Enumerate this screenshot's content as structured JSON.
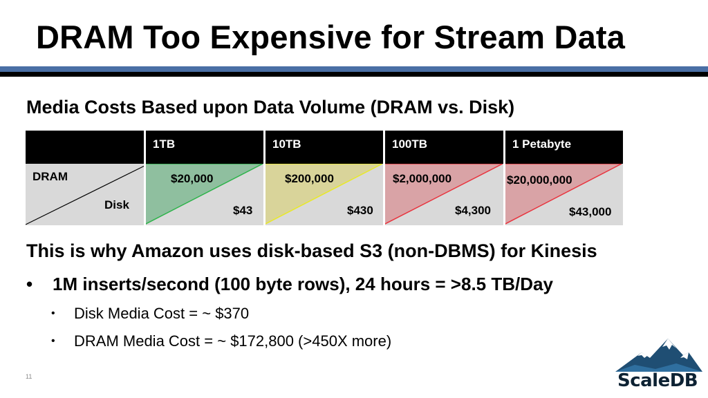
{
  "slide": {
    "title": "DRAM Too Expensive for Stream Data",
    "subtitle": "Media Costs Based upon Data Volume (DRAM vs. Disk)",
    "page_number": "11"
  },
  "table": {
    "corner": {
      "top_label": "DRAM",
      "bottom_label": "Disk"
    },
    "columns": [
      {
        "header": "1TB",
        "dram": "$20,000",
        "disk": "$43",
        "color": "#8fbf9f",
        "line": "#2db34a"
      },
      {
        "header": "10TB",
        "dram": "$200,000",
        "disk": "$430",
        "color": "#d9d49a",
        "line": "#e8e82a"
      },
      {
        "header": "100TB",
        "dram": "$2,000,000",
        "disk": "$4,300",
        "color": "#d9a3a6",
        "line": "#e8343e"
      },
      {
        "header": "1 Petabyte",
        "dram": "$20,000,000",
        "disk": "$43,000",
        "color": "#d9a3a6",
        "line": "#e8343e"
      }
    ]
  },
  "body": {
    "heading": "This is why Amazon uses disk-based S3 (non-DBMS) for Kinesis",
    "bullet": "1M inserts/second (100 byte rows), 24 hours = >8.5 TB/Day",
    "sub_bullets": [
      "Disk Media Cost = ~ $370",
      "DRAM Media Cost = ~ $172,800 (>450X more)"
    ]
  },
  "logo": {
    "text": "ScaleDB",
    "icon": "mountain-logo-icon"
  },
  "colors": {
    "rule_blue": "#4a6fa5",
    "rule_black": "#000000",
    "cell_gray": "#d9d9d9"
  }
}
